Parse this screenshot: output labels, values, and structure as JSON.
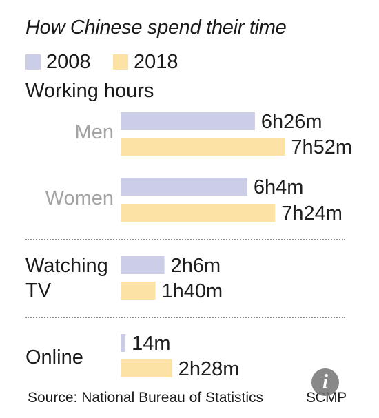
{
  "chart_data": {
    "type": "bar",
    "orientation": "horizontal",
    "title": "How Chinese spend their time",
    "legend": [
      {
        "label": "2008",
        "color": "#cccde6"
      },
      {
        "label": "2018",
        "color": "#fde2a6"
      }
    ],
    "legend_position": "top-left",
    "grid": false,
    "unit": "minutes",
    "groups": [
      {
        "section": "Working hours",
        "rows": [
          {
            "label": "Men",
            "values": [
              386,
              472
            ],
            "value_labels": [
              "6h26m",
              "7h52m"
            ]
          },
          {
            "label": "Women",
            "values": [
              364,
              444
            ],
            "value_labels": [
              "6h4m",
              "7h24m"
            ]
          }
        ]
      },
      {
        "section": "Watching TV",
        "rows": [
          {
            "label": "",
            "values": [
              126,
              100
            ],
            "value_labels": [
              "2h6m",
              "1h40m"
            ]
          }
        ]
      },
      {
        "section": "Online",
        "rows": [
          {
            "label": "",
            "values": [
              14,
              148
            ],
            "value_labels": [
              "14m",
              "2h28m"
            ]
          }
        ]
      }
    ]
  },
  "labels": {
    "title": "How Chinese spend their time",
    "legend_2008": "2008",
    "legend_2018": "2018",
    "section_working": "Working hours",
    "section_tv_line1": "Watching",
    "section_tv_line2": "TV",
    "section_online": "Online",
    "row_men": "Men",
    "row_women": "Women"
  },
  "footer": {
    "source": "Source: National Bureau of Statistics",
    "brand": "SCMP"
  },
  "icons": {
    "info": "info-icon"
  }
}
